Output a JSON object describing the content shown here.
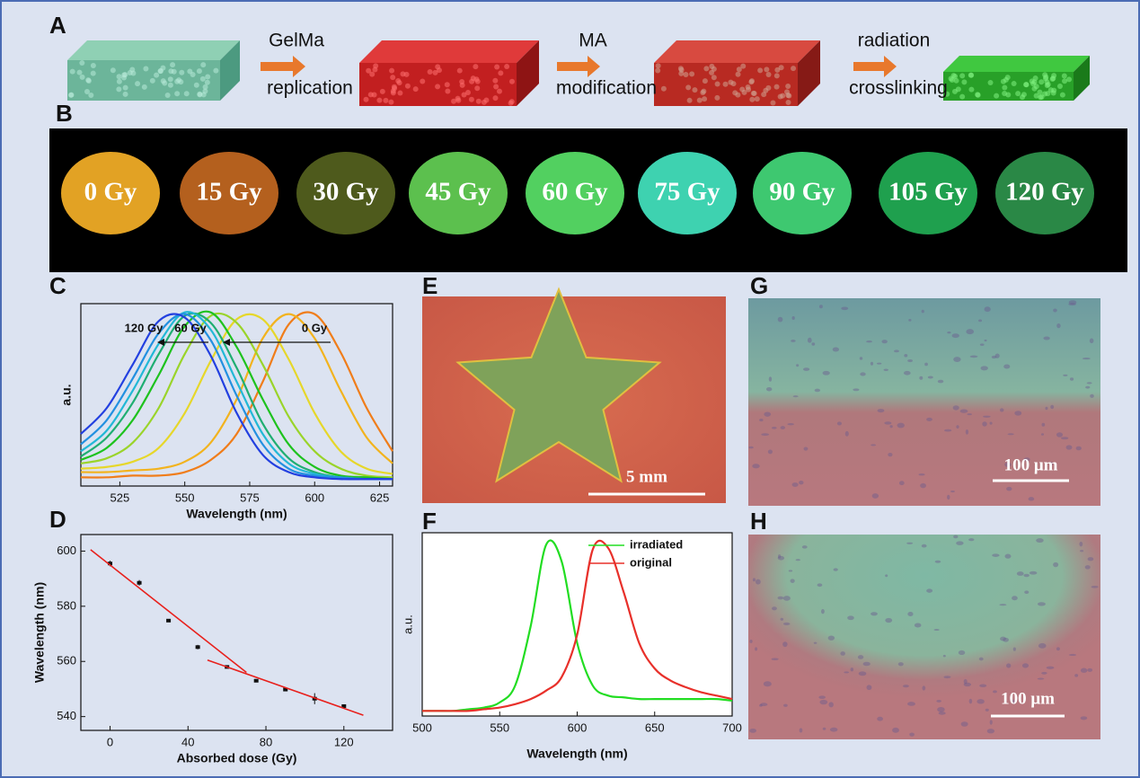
{
  "panels": [
    "A",
    "B",
    "C",
    "D",
    "E",
    "F",
    "G",
    "H"
  ],
  "scheme": [
    {
      "top": "GelMa",
      "bottom": "replication"
    },
    {
      "top": "MA",
      "bottom": "modification"
    },
    {
      "top": "radiation",
      "bottom": "crosslinking"
    }
  ],
  "doses": [
    "0 Gy",
    "15 Gy",
    "30 Gy",
    "45 Gy",
    "60 Gy",
    "75 Gy",
    "90 Gy",
    "105 Gy",
    "120 Gy"
  ],
  "scale_bars": {
    "E": "5 mm",
    "G": "100 μm",
    "H": "100 μm"
  },
  "chart_data": [
    {
      "type": "line",
      "ylabel": "a.u.",
      "xlabel": "Wavelength (nm)",
      "annotations": [
        "120 Gy",
        "60 Gy",
        "0 Gy"
      ],
      "x": [
        510,
        520,
        530,
        540,
        550,
        560,
        570,
        580,
        590,
        600,
        610,
        620,
        630
      ],
      "xlim": [
        510,
        630
      ],
      "xticks": [
        525,
        550,
        575,
        600,
        625
      ],
      "ylim": [
        0,
        1.05
      ],
      "series": [
        {
          "color": "#f07d1a",
          "values": [
            0.05,
            0.05,
            0.06,
            0.06,
            0.08,
            0.15,
            0.3,
            0.6,
            0.93,
            0.99,
            0.77,
            0.45,
            0.2
          ]
        },
        {
          "color": "#f2b31e",
          "values": [
            0.08,
            0.08,
            0.09,
            0.1,
            0.14,
            0.25,
            0.5,
            0.85,
            0.99,
            0.85,
            0.55,
            0.28,
            0.13
          ]
        },
        {
          "color": "#e6d72a",
          "values": [
            0.1,
            0.11,
            0.14,
            0.22,
            0.42,
            0.72,
            0.96,
            0.96,
            0.73,
            0.42,
            0.2,
            0.1,
            0.07
          ]
        },
        {
          "color": "#9ad42a",
          "values": [
            0.13,
            0.16,
            0.25,
            0.45,
            0.76,
            0.98,
            0.94,
            0.7,
            0.4,
            0.2,
            0.1,
            0.06,
            0.05
          ]
        },
        {
          "color": "#1ec21e",
          "values": [
            0.15,
            0.22,
            0.38,
            0.64,
            0.92,
            1.0,
            0.8,
            0.5,
            0.24,
            0.11,
            0.06,
            0.05,
            0.04
          ]
        },
        {
          "color": "#1fae72",
          "values": [
            0.17,
            0.28,
            0.48,
            0.76,
            0.98,
            0.94,
            0.68,
            0.36,
            0.16,
            0.08,
            0.05,
            0.04,
            0.04
          ]
        },
        {
          "color": "#22b8d6",
          "values": [
            0.2,
            0.32,
            0.55,
            0.82,
            1.0,
            0.9,
            0.6,
            0.3,
            0.13,
            0.07,
            0.05,
            0.04,
            0.04
          ]
        },
        {
          "color": "#2390e0",
          "values": [
            0.24,
            0.38,
            0.62,
            0.88,
            0.99,
            0.84,
            0.52,
            0.24,
            0.1,
            0.06,
            0.05,
            0.04,
            0.04
          ]
        },
        {
          "color": "#2340e0",
          "values": [
            0.3,
            0.45,
            0.7,
            0.95,
            0.97,
            0.75,
            0.42,
            0.18,
            0.08,
            0.05,
            0.04,
            0.04,
            0.04
          ]
        }
      ]
    },
    {
      "type": "scatter",
      "ylabel": "Wavelength (nm)",
      "xlabel": "Absorbed dose (Gy)",
      "x": [
        0,
        15,
        30,
        45,
        60,
        75,
        90,
        105,
        120
      ],
      "xlim": [
        -15,
        145
      ],
      "xticks": [
        0,
        40,
        80,
        120
      ],
      "ylim": [
        535,
        606
      ],
      "yticks": [
        540,
        560,
        580,
        600
      ],
      "series": [
        {
          "color": "#111111",
          "values": [
            595.5,
            588.5,
            574.8,
            565.2,
            558,
            553,
            549.8,
            546.5,
            543.8
          ],
          "errors": [
            1,
            1,
            0.5,
            0.8,
            0.3,
            0.4,
            0.3,
            2,
            0.6
          ]
        }
      ],
      "fits": [
        {
          "color": "#e8201c",
          "x": [
            -10,
            70
          ],
          "values": [
            600.5,
            556
          ]
        },
        {
          "color": "#e8201c",
          "x": [
            50,
            130
          ],
          "values": [
            560.5,
            540.5
          ]
        }
      ]
    },
    {
      "type": "line",
      "ylabel": "a.u.",
      "xlabel": "Wavelength (nm)",
      "legend": "upper right",
      "x": [
        500,
        510,
        520,
        530,
        540,
        550,
        560,
        570,
        580,
        590,
        600,
        610,
        620,
        630,
        640,
        650,
        660,
        670,
        680,
        690,
        700
      ],
      "xlim": [
        500,
        700
      ],
      "xticks": [
        500,
        550,
        600,
        650,
        700
      ],
      "ylim": [
        -0.03,
        1.05
      ],
      "series": [
        {
          "name": "irradiated",
          "color": "#22dd22",
          "values": [
            0.0,
            0.0,
            0.0,
            0.01,
            0.02,
            0.05,
            0.15,
            0.5,
            0.98,
            0.88,
            0.4,
            0.15,
            0.09,
            0.08,
            0.07,
            0.07,
            0.07,
            0.07,
            0.07,
            0.07,
            0.06
          ]
        },
        {
          "name": "original",
          "color": "#e8302a",
          "values": [
            0.0,
            0.0,
            0.0,
            0.0,
            0.01,
            0.02,
            0.04,
            0.07,
            0.12,
            0.2,
            0.45,
            0.95,
            0.96,
            0.7,
            0.4,
            0.25,
            0.18,
            0.14,
            0.11,
            0.09,
            0.07
          ]
        }
      ]
    }
  ]
}
